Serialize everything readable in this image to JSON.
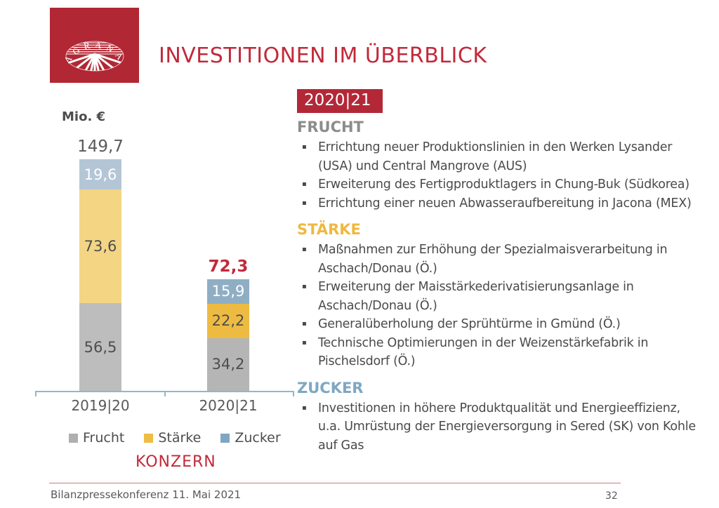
{
  "slide": {
    "title": "INVESTITIONEN IM ÜBERBLICK",
    "logo_text": "AGRANA",
    "period_badge": "2020|21",
    "footer_left": "Bilanzpressekonferenz 11. Mai 2021",
    "page_number": "32",
    "bullet_char": "▪"
  },
  "chart_data": {
    "type": "bar",
    "stacked": true,
    "unit_label": "Mio. €",
    "group_label": "KONZERN",
    "categories": [
      "2019|20",
      "2020|21"
    ],
    "series": [
      {
        "name": "Frucht",
        "values": [
          56.5,
          34.2
        ],
        "labels": [
          "56,5",
          "34,2"
        ]
      },
      {
        "name": "Stärke",
        "values": [
          73.6,
          22.2
        ],
        "labels": [
          "73,6",
          "22,2"
        ]
      },
      {
        "name": "Zucker",
        "values": [
          19.6,
          15.9
        ],
        "labels": [
          "19,6",
          "15,9"
        ]
      }
    ],
    "totals": {
      "values": [
        149.7,
        72.3
      ],
      "labels": [
        "149,7",
        "72,3"
      ],
      "highlight_index": 1
    },
    "legend": [
      "Frucht",
      "Stärke",
      "Zucker"
    ],
    "colors": {
      "bars": [
        {
          "Frucht": "#BDBDBD",
          "Stärke": "#F3D584",
          "Zucker": "#B4C6D6"
        },
        {
          "Frucht": "#B5B5B5",
          "Stärke": "#EEBB42",
          "Zucker": "#8FAEC4"
        }
      ],
      "legend": {
        "Frucht": "#AFAFAF",
        "Stärke": "#EFBC44",
        "Zucker": "#7FA7C2"
      },
      "value_text": {
        "Zucker": "#FFFFFF",
        "default": "#4D4D4D"
      },
      "axis": "#8FB8CB",
      "total_default": "#595959",
      "total_highlight": "#C2293A"
    }
  },
  "sections": [
    {
      "title": "FRUCHT",
      "color": "#8C8C8C",
      "bullets": [
        "Errichtung neuer Produktionslinien in den Werken Lysander (USA) und Central Mangrove (AUS)",
        "Erweiterung des Fertigproduktlagers in Chung-Buk (Südkorea)",
        "Errichtung einer neuen Abwasseraufbereitung in Jacona (MEX)"
      ]
    },
    {
      "title": "STÄRKE",
      "color": "#EFB93F",
      "bullets": [
        "Maßnahmen zur Erhöhung der Spezialmaisverarbeitung in Aschach/Donau (Ö.)",
        "Erweiterung der Maisstärkederivatisierungsanlage in Aschach/Donau (Ö.)",
        "Generalüberholung der Sprühtürme in Gmünd (Ö.)",
        "Technische Optimierungen in der Weizenstärkefabrik in Pischelsdorf (Ö.)"
      ]
    },
    {
      "title": "ZUCKER",
      "color": "#7FA7C2",
      "bullets": [
        "Investitionen in höhere Produktqualität und Energieeffizienz, u.a. Umrüstung der Energieversorgung in Sered (SK) von Kohle auf Gas"
      ]
    }
  ]
}
